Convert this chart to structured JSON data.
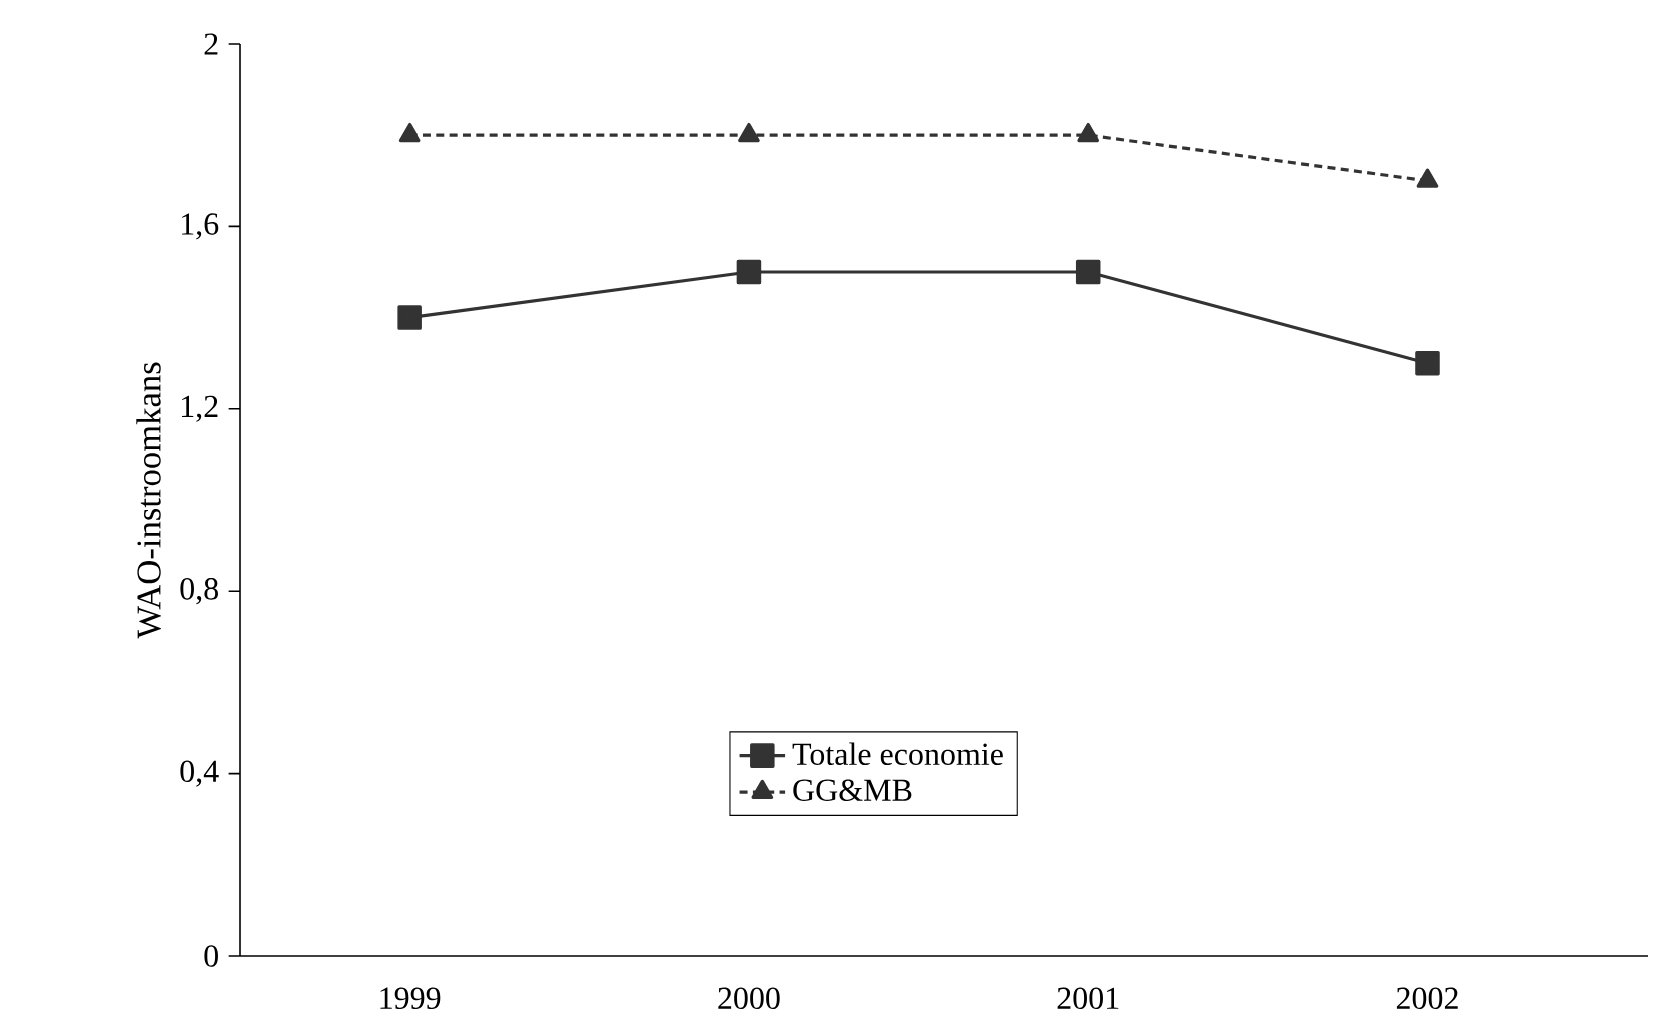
{
  "chart_data": {
    "type": "line",
    "ylabel": "WAO-instroomkans",
    "categories": [
      "1999",
      "2000",
      "2001",
      "2002"
    ],
    "series": [
      {
        "name": "Totale economie",
        "color": "#333333",
        "values": [
          1.4,
          1.5,
          1.5,
          1.3
        ],
        "marker": "square",
        "line_style": "solid"
      },
      {
        "name": "GG&MB",
        "color": "#333333",
        "values": [
          1.8,
          1.8,
          1.8,
          1.7
        ],
        "marker": "triangle",
        "line_style": "dotted"
      }
    ],
    "ylim": [
      0,
      2
    ],
    "yticks": [
      0,
      {
        "value": 0.4,
        "label": "0,4"
      },
      {
        "value": 0.8,
        "label": "0,8"
      },
      {
        "value": 1.2,
        "label": "1,2"
      },
      {
        "value": 1.6,
        "label": "1,6"
      },
      2
    ],
    "grid": false,
    "legend": "bottom"
  }
}
